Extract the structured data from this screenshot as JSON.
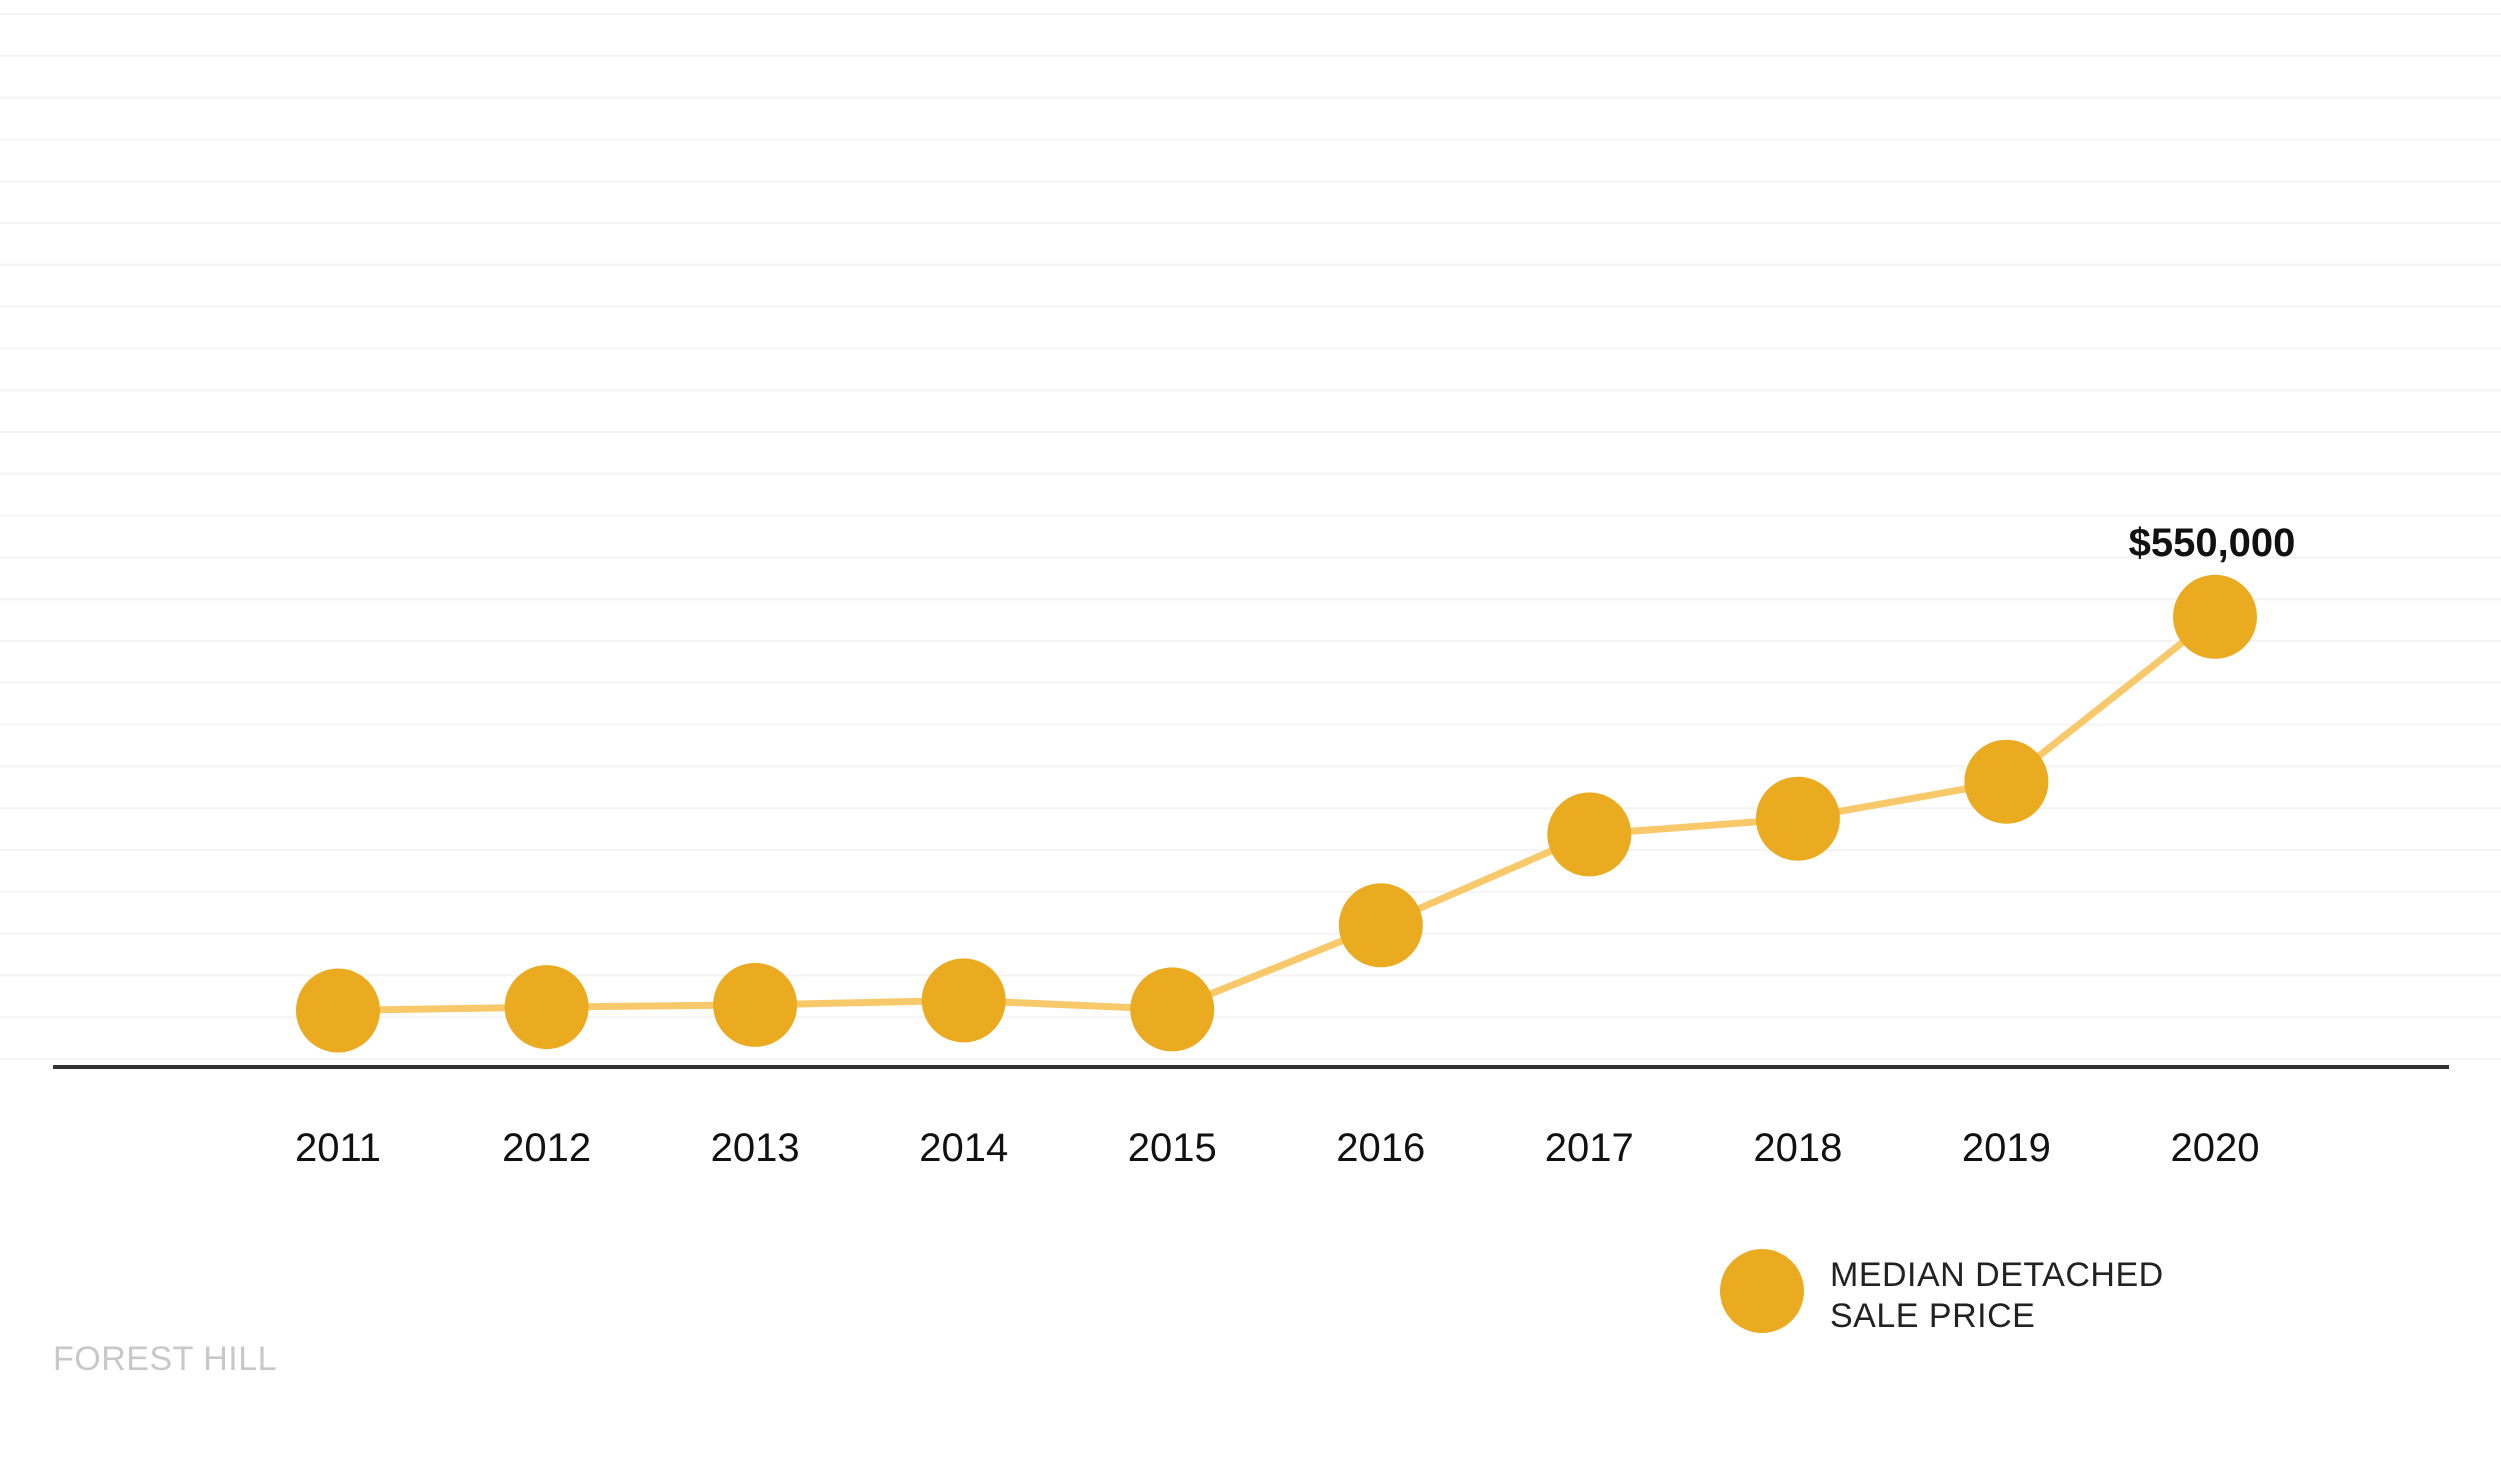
{
  "chart_data": {
    "type": "line",
    "categories": [
      "2011",
      "2012",
      "2013",
      "2014",
      "2015",
      "2016",
      "2017",
      "2018",
      "2019",
      "2020"
    ],
    "series": [
      {
        "name": "MEDIAN DETACHED SALE PRICE",
        "values": [
          199000,
          202000,
          204000,
          208000,
          200000,
          275000,
          356000,
          370000,
          403000,
          550000
        ],
        "color": "#ebab20"
      }
    ],
    "line_color": "#f7c96b",
    "axis_color": "#333333",
    "grid_color": "#f4f4f4",
    "annotations": [
      {
        "category": "2020",
        "text": "$550,000"
      }
    ],
    "ylim": [
      -200000,
      1100000
    ],
    "grid": true,
    "legend": {
      "position": "bottom-right",
      "lines": [
        "MEDIAN DETACHED",
        "SALE PRICE"
      ]
    },
    "title": "",
    "xlabel": "",
    "ylabel": ""
  },
  "footer": {
    "text": "FOREST HILL"
  }
}
